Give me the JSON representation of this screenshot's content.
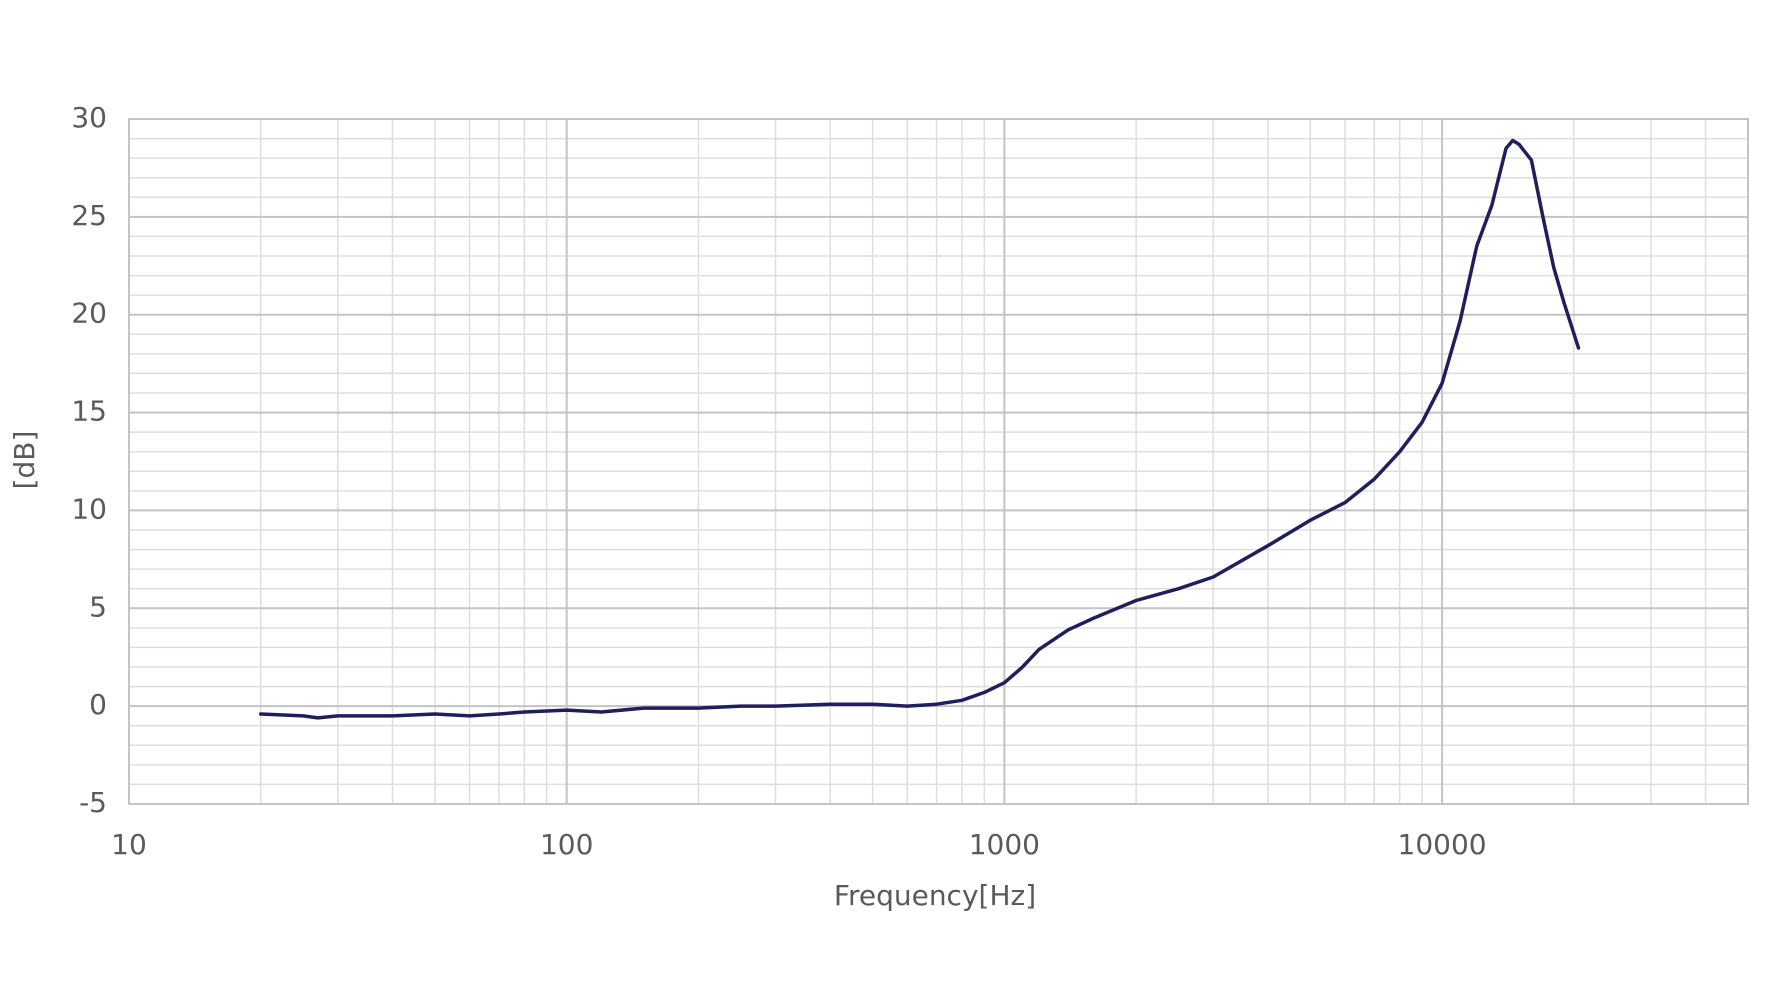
{
  "chart_data": {
    "type": "line",
    "x_label": "Frequency[Hz]",
    "y_label": "[dB]",
    "x_log": true,
    "grid": true,
    "minor_grid": true,
    "xlim": [
      10,
      50000
    ],
    "xticks": [
      10,
      100,
      1000,
      10000
    ],
    "ylim": [
      -5,
      30
    ],
    "yticks": [
      -5,
      0,
      5,
      10,
      15,
      20,
      25,
      30
    ],
    "series": [
      {
        "color": "#1f1f5c",
        "x": [
          20,
          25,
          27,
          30,
          40,
          50,
          60,
          70,
          80,
          100,
          120,
          150,
          200,
          250,
          300,
          400,
          500,
          600,
          700,
          800,
          900,
          1000,
          1100,
          1200,
          1400,
          1600,
          2000,
          2500,
          3000,
          4000,
          5000,
          6000,
          7000,
          8000,
          9000,
          10000,
          11000,
          12000,
          13000,
          14000,
          14500,
          15000,
          16000,
          17000,
          18000,
          19000,
          20500
        ],
        "values": [
          -0.4,
          -0.5,
          -0.6,
          -0.5,
          -0.5,
          -0.4,
          -0.5,
          -0.4,
          -0.3,
          -0.2,
          -0.3,
          -0.1,
          -0.1,
          0,
          0,
          0.1,
          0.1,
          0,
          0.1,
          0.3,
          0.7,
          1.2,
          2.0,
          2.9,
          3.9,
          4.5,
          5.4,
          6.0,
          6.6,
          8.2,
          9.5,
          10.4,
          11.6,
          13,
          14.5,
          16.5,
          19.7,
          23.5,
          25.6,
          28.5,
          28.9,
          28.7,
          27.9,
          25,
          22.4,
          20.6,
          18.3
        ]
      }
    ]
  }
}
